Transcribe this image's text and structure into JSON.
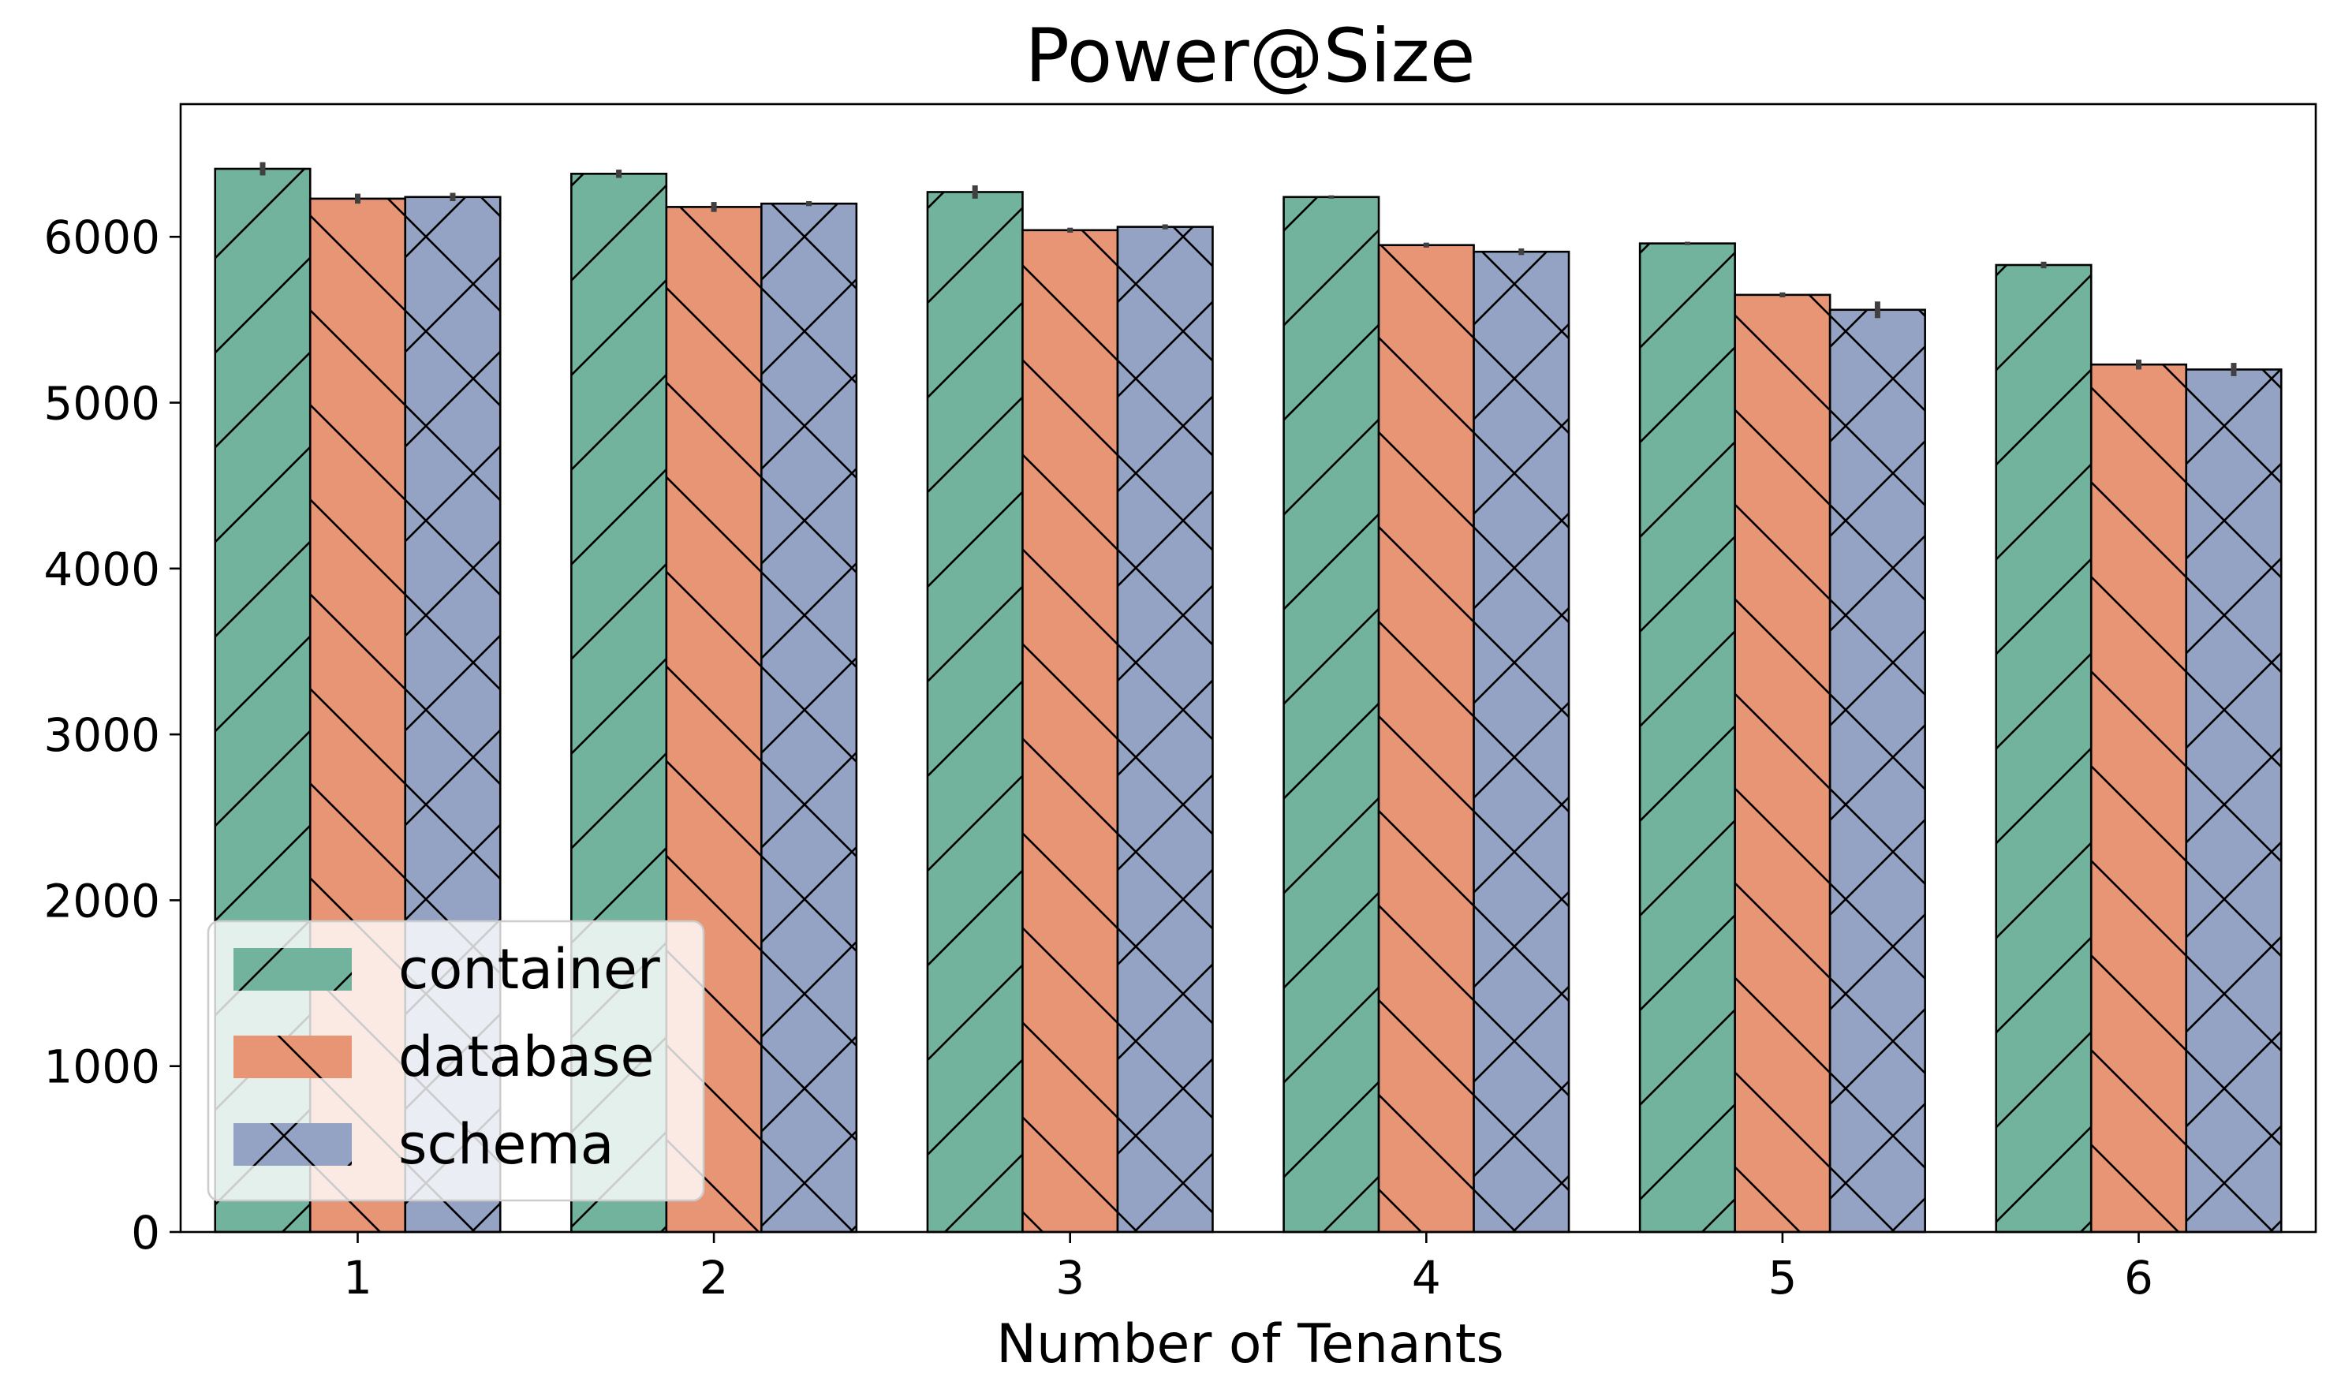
{
  "chart_data": {
    "type": "bar",
    "title": "Power@Size",
    "xlabel": "Number of Tenants",
    "ylabel": "",
    "categories": [
      "1",
      "2",
      "3",
      "4",
      "5",
      "6"
    ],
    "ylim": [
      0,
      6800
    ],
    "yticks": [
      0,
      1000,
      2000,
      3000,
      4000,
      5000,
      6000
    ],
    "grid": false,
    "legend_position": "lower-left",
    "series": [
      {
        "name": "container",
        "color": "#72b39e",
        "hatch": "forward-diagonal",
        "values": [
          6410,
          6380,
          6270,
          6240,
          5960,
          5830
        ],
        "errors": [
          40,
          25,
          40,
          10,
          10,
          20
        ]
      },
      {
        "name": "database",
        "color": "#e79574",
        "hatch": "back-diagonal",
        "values": [
          6230,
          6180,
          6040,
          5950,
          5650,
          5230
        ],
        "errors": [
          30,
          30,
          15,
          15,
          15,
          30
        ]
      },
      {
        "name": "schema",
        "color": "#94a3c4",
        "hatch": "cross",
        "values": [
          6240,
          6200,
          6060,
          5910,
          5560,
          5200
        ],
        "errors": [
          25,
          15,
          15,
          20,
          50,
          40
        ]
      }
    ]
  }
}
